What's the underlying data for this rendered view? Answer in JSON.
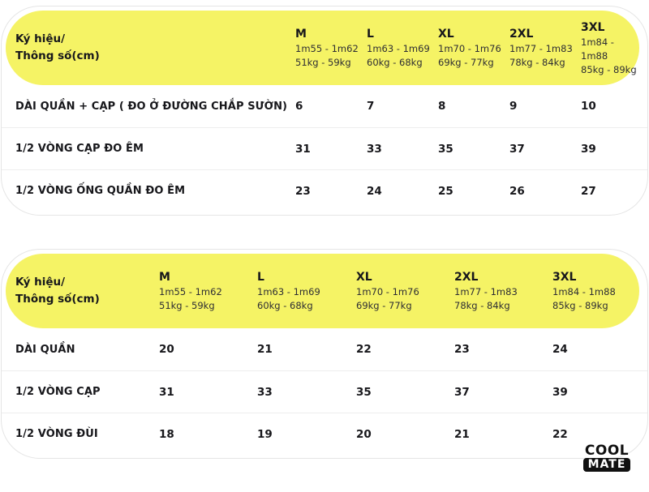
{
  "colors": {
    "header_yellow": "#F5F365",
    "text_dark": "#17171B",
    "sub_text": "#2E2E33",
    "divider": "#EDEDED",
    "card_border": "#E5E5E5",
    "logo_black": "#101010",
    "background": "#FFFFFF"
  },
  "chart_data": [
    {
      "type": "table",
      "header_label": [
        "Ký hiệu/",
        "Thông số(cm)"
      ],
      "columns": [
        {
          "size": "M",
          "height": "1m55 - 1m62",
          "weight": "51kg - 59kg"
        },
        {
          "size": "L",
          "height": "1m63 - 1m69",
          "weight": "60kg - 68kg"
        },
        {
          "size": "XL",
          "height": "1m70 - 1m76",
          "weight": "69kg - 77kg"
        },
        {
          "size": "2XL",
          "height": "1m77 - 1m83",
          "weight": "78kg - 84kg"
        },
        {
          "size": "3XL",
          "height": "1m84 - 1m88",
          "weight": "85kg - 89kg"
        }
      ],
      "rows": [
        {
          "label": "DÀI QUẦN + CẠP ( ĐO Ở ĐƯỜNG CHẮP SƯỜN)",
          "values": [
            "6",
            "7",
            "8",
            "9",
            "10"
          ]
        },
        {
          "label": "1/2 VÒNG CẠP ĐO ÊM",
          "values": [
            "31",
            "33",
            "35",
            "37",
            "39"
          ]
        },
        {
          "label": "1/2 VÒNG ỐNG QUẦN ĐO ÊM",
          "values": [
            "23",
            "24",
            "25",
            "26",
            "27"
          ]
        }
      ]
    },
    {
      "type": "table",
      "header_label": [
        "Ký hiệu/",
        "Thông số(cm)"
      ],
      "columns": [
        {
          "size": "M",
          "height": "1m55 - 1m62",
          "weight": "51kg - 59kg"
        },
        {
          "size": "L",
          "height": "1m63 - 1m69",
          "weight": "60kg - 68kg"
        },
        {
          "size": "XL",
          "height": "1m70 - 1m76",
          "weight": "69kg - 77kg"
        },
        {
          "size": "2XL",
          "height": "1m77 - 1m83",
          "weight": "78kg - 84kg"
        },
        {
          "size": "3XL",
          "height": "1m84 - 1m88",
          "weight": "85kg - 89kg"
        }
      ],
      "rows": [
        {
          "label": "DÀI QUẦN",
          "values": [
            "20",
            "21",
            "22",
            "23",
            "24"
          ]
        },
        {
          "label": "1/2 VÒNG CẠP",
          "values": [
            "31",
            "33",
            "35",
            "37",
            "39"
          ]
        },
        {
          "label": "1/2 VÒNG ĐÙI",
          "values": [
            "18",
            "19",
            "20",
            "21",
            "22"
          ]
        }
      ]
    }
  ],
  "logo": {
    "line1": "COOL",
    "line2": "MATE"
  }
}
